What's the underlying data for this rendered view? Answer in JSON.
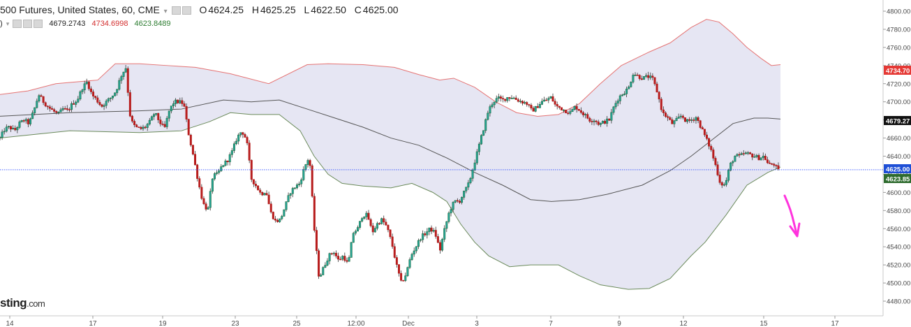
{
  "header": {
    "symbol": "500 Futures, United States, 60, CME",
    "ohlc": {
      "o_key": "O",
      "o": "4624.25",
      "h_key": "H",
      "h": "4625.25",
      "l_key": "L",
      "l": "4622.50",
      "c_key": "C",
      "c": "4625.00"
    },
    "indicator_prefix": ")",
    "indicator_values": {
      "mid": "4679.2743",
      "upper": "4734.6998",
      "lower": "4623.8489"
    }
  },
  "logo": {
    "text": "sting",
    "suffix": ".com"
  },
  "colors": {
    "up": "#26a69a",
    "up_dark": "#1b6b3e",
    "down": "#b71c1c",
    "band_fill": "#e6e6f3",
    "upper_band": "#e57373",
    "mid_band": "#555555",
    "lower_band": "#6a8a5a",
    "arrow": "#ff33dd",
    "price_line": "#3050ff",
    "tag_upper": "#e53935",
    "tag_mid": "#111111",
    "tag_price": "#1e4fd6",
    "tag_lower": "#2e6b2e"
  },
  "chart_data": {
    "type": "candlestick",
    "ylim": [
      4470,
      4810
    ],
    "y_ticks": [
      "4800.00",
      "4780.00",
      "4760.00",
      "4740.00",
      "4720.00",
      "4700.00",
      "4680.00",
      "4660.00",
      "4640.00",
      "4620.00",
      "4600.00",
      "4580.00",
      "4560.00",
      "4540.00",
      "4520.00",
      "4500.00",
      "4480.00"
    ],
    "x_ticks": [
      "14",
      "17",
      "19",
      "23",
      "25",
      "12:00",
      "Dec",
      "3",
      "7",
      "9",
      "12",
      "15",
      "17"
    ],
    "price_tags": [
      {
        "name": "upper",
        "label": "4734.70"
      },
      {
        "name": "mid",
        "label": "4679.27"
      },
      {
        "name": "price",
        "label": "4625.00"
      },
      {
        "name": "lower",
        "label": "4623.85"
      }
    ],
    "current_price": 4625.0,
    "close_path": [
      [
        0,
        4660
      ],
      [
        1,
        4670
      ],
      [
        2,
        4672
      ],
      [
        3,
        4668
      ],
      [
        4,
        4676
      ],
      [
        5,
        4680
      ],
      [
        6,
        4676
      ],
      [
        7,
        4690
      ],
      [
        8,
        4708
      ],
      [
        9,
        4700
      ],
      [
        10,
        4694
      ],
      [
        11,
        4690
      ],
      [
        12,
        4686
      ],
      [
        13,
        4692
      ],
      [
        14,
        4690
      ],
      [
        15,
        4698
      ],
      [
        16,
        4702
      ],
      [
        17,
        4715
      ],
      [
        18,
        4722
      ],
      [
        19,
        4708
      ],
      [
        20,
        4702
      ],
      [
        21,
        4695
      ],
      [
        22,
        4700
      ],
      [
        23,
        4705
      ],
      [
        24,
        4712
      ],
      [
        25,
        4728
      ],
      [
        26,
        4738
      ],
      [
        27,
        4680
      ],
      [
        28,
        4672
      ],
      [
        29,
        4670
      ],
      [
        30,
        4672
      ],
      [
        31,
        4678
      ],
      [
        32,
        4688
      ],
      [
        33,
        4678
      ],
      [
        34,
        4670
      ],
      [
        35,
        4690
      ],
      [
        36,
        4700
      ],
      [
        37,
        4700
      ],
      [
        38,
        4698
      ],
      [
        39,
        4665
      ],
      [
        40,
        4640
      ],
      [
        41,
        4612
      ],
      [
        42,
        4588
      ],
      [
        43,
        4580
      ],
      [
        44,
        4618
      ],
      [
        45,
        4620
      ],
      [
        46,
        4630
      ],
      [
        47,
        4635
      ],
      [
        48,
        4645
      ],
      [
        49,
        4660
      ],
      [
        50,
        4668
      ],
      [
        51,
        4658
      ],
      [
        52,
        4615
      ],
      [
        53,
        4607
      ],
      [
        54,
        4598
      ],
      [
        55,
        4602
      ],
      [
        56,
        4578
      ],
      [
        57,
        4568
      ],
      [
        58,
        4570
      ],
      [
        59,
        4585
      ],
      [
        60,
        4600
      ],
      [
        61,
        4606
      ],
      [
        62,
        4610
      ],
      [
        63,
        4628
      ],
      [
        64,
        4640
      ],
      [
        65,
        4560
      ],
      [
        66,
        4505
      ],
      [
        67,
        4518
      ],
      [
        68,
        4530
      ],
      [
        69,
        4535
      ],
      [
        70,
        4525
      ],
      [
        71,
        4530
      ],
      [
        72,
        4520
      ],
      [
        73,
        4555
      ],
      [
        74,
        4560
      ],
      [
        75,
        4575
      ],
      [
        76,
        4575
      ],
      [
        77,
        4556
      ],
      [
        78,
        4565
      ],
      [
        79,
        4570
      ],
      [
        80,
        4562
      ],
      [
        81,
        4545
      ],
      [
        82,
        4520
      ],
      [
        83,
        4500
      ],
      [
        84,
        4510
      ],
      [
        85,
        4530
      ],
      [
        86,
        4540
      ],
      [
        87,
        4550
      ],
      [
        88,
        4555
      ],
      [
        89,
        4560
      ],
      [
        90,
        4555
      ],
      [
        91,
        4536
      ],
      [
        92,
        4560
      ],
      [
        93,
        4580
      ],
      [
        94,
        4590
      ],
      [
        95,
        4590
      ],
      [
        96,
        4600
      ],
      [
        97,
        4610
      ],
      [
        98,
        4630
      ],
      [
        99,
        4650
      ],
      [
        100,
        4670
      ],
      [
        101,
        4690
      ],
      [
        102,
        4700
      ],
      [
        103,
        4704
      ],
      [
        104,
        4702
      ],
      [
        105,
        4705
      ],
      [
        106,
        4705
      ],
      [
        107,
        4702
      ],
      [
        108,
        4700
      ],
      [
        109,
        4698
      ],
      [
        110,
        4690
      ],
      [
        111,
        4694
      ],
      [
        112,
        4700
      ],
      [
        113,
        4702
      ],
      [
        114,
        4705
      ],
      [
        115,
        4695
      ],
      [
        116,
        4693
      ],
      [
        117,
        4690
      ],
      [
        118,
        4688
      ],
      [
        119,
        4695
      ],
      [
        120,
        4690
      ],
      [
        121,
        4685
      ],
      [
        122,
        4680
      ],
      [
        123,
        4680
      ],
      [
        124,
        4675
      ],
      [
        125,
        4678
      ],
      [
        126,
        4680
      ],
      [
        127,
        4695
      ],
      [
        128,
        4705
      ],
      [
        129,
        4710
      ],
      [
        130,
        4715
      ],
      [
        131,
        4732
      ],
      [
        132,
        4728
      ],
      [
        133,
        4726
      ],
      [
        134,
        4728
      ],
      [
        135,
        4725
      ],
      [
        136,
        4710
      ],
      [
        137,
        4688
      ],
      [
        138,
        4683
      ],
      [
        139,
        4676
      ],
      [
        140,
        4680
      ],
      [
        141,
        4685
      ],
      [
        142,
        4678
      ],
      [
        143,
        4680
      ],
      [
        144,
        4683
      ],
      [
        145,
        4672
      ],
      [
        146,
        4660
      ],
      [
        147,
        4648
      ],
      [
        148,
        4630
      ],
      [
        149,
        4610
      ],
      [
        150,
        4608
      ],
      [
        151,
        4630
      ],
      [
        152,
        4640
      ],
      [
        153,
        4640
      ],
      [
        154,
        4643
      ],
      [
        155,
        4642
      ],
      [
        156,
        4640
      ],
      [
        157,
        4638
      ],
      [
        158,
        4640
      ],
      [
        159,
        4630
      ],
      [
        160,
        4632
      ],
      [
        161,
        4624
      ]
    ],
    "upper_band": [
      [
        0,
        4708
      ],
      [
        40,
        4712
      ],
      [
        80,
        4720
      ],
      [
        110,
        4722
      ],
      [
        140,
        4724
      ],
      [
        165,
        4742
      ],
      [
        200,
        4742
      ],
      [
        240,
        4740
      ],
      [
        280,
        4738
      ],
      [
        330,
        4731
      ],
      [
        385,
        4720
      ],
      [
        440,
        4741
      ],
      [
        470,
        4742
      ],
      [
        520,
        4741
      ],
      [
        565,
        4738
      ],
      [
        600,
        4730
      ],
      [
        630,
        4724
      ],
      [
        650,
        4726
      ],
      [
        680,
        4716
      ],
      [
        710,
        4700
      ],
      [
        740,
        4688
      ],
      [
        770,
        4684
      ],
      [
        800,
        4686
      ],
      [
        830,
        4698
      ],
      [
        860,
        4720
      ],
      [
        890,
        4740
      ],
      [
        930,
        4755
      ],
      [
        960,
        4765
      ],
      [
        990,
        4782
      ],
      [
        1012,
        4791
      ],
      [
        1030,
        4788
      ],
      [
        1050,
        4775
      ],
      [
        1070,
        4760
      ],
      [
        1090,
        4748
      ],
      [
        1105,
        4740
      ],
      [
        1118,
        4741
      ]
    ],
    "lower_band": [
      [
        0,
        4660
      ],
      [
        100,
        4668
      ],
      [
        200,
        4666
      ],
      [
        260,
        4668
      ],
      [
        300,
        4678
      ],
      [
        330,
        4688
      ],
      [
        360,
        4686
      ],
      [
        400,
        4686
      ],
      [
        430,
        4668
      ],
      [
        450,
        4640
      ],
      [
        470,
        4620
      ],
      [
        490,
        4610
      ],
      [
        520,
        4607
      ],
      [
        560,
        4605
      ],
      [
        590,
        4610
      ],
      [
        620,
        4600
      ],
      [
        640,
        4590
      ],
      [
        660,
        4565
      ],
      [
        680,
        4545
      ],
      [
        700,
        4530
      ],
      [
        730,
        4518
      ],
      [
        760,
        4520
      ],
      [
        800,
        4520
      ],
      [
        830,
        4508
      ],
      [
        860,
        4498
      ],
      [
        900,
        4493
      ],
      [
        930,
        4494
      ],
      [
        960,
        4505
      ],
      [
        990,
        4530
      ],
      [
        1010,
        4545
      ],
      [
        1040,
        4575
      ],
      [
        1070,
        4608
      ],
      [
        1100,
        4622
      ],
      [
        1118,
        4628
      ]
    ],
    "mid_band": [
      [
        0,
        4684
      ],
      [
        100,
        4688
      ],
      [
        200,
        4690
      ],
      [
        260,
        4692
      ],
      [
        320,
        4702
      ],
      [
        360,
        4700
      ],
      [
        400,
        4702
      ],
      [
        440,
        4692
      ],
      [
        480,
        4682
      ],
      [
        520,
        4672
      ],
      [
        560,
        4660
      ],
      [
        600,
        4652
      ],
      [
        640,
        4638
      ],
      [
        680,
        4622
      ],
      [
        720,
        4608
      ],
      [
        760,
        4592
      ],
      [
        790,
        4590
      ],
      [
        830,
        4592
      ],
      [
        870,
        4598
      ],
      [
        920,
        4608
      ],
      [
        960,
        4624
      ],
      [
        990,
        4640
      ],
      [
        1020,
        4658
      ],
      [
        1050,
        4676
      ],
      [
        1080,
        4682
      ],
      [
        1100,
        4682
      ],
      [
        1118,
        4681
      ]
    ],
    "arrow_points": [
      [
        1124,
        280
      ],
      [
        1129,
        292
      ],
      [
        1132,
        300
      ],
      [
        1135,
        310
      ],
      [
        1137,
        318
      ],
      [
        1139,
        326
      ],
      [
        1141,
        334
      ],
      [
        1142,
        338
      ]
    ]
  }
}
